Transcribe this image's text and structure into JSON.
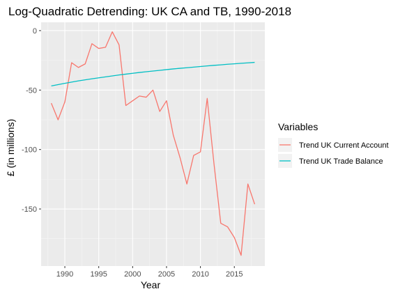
{
  "chart_data": {
    "type": "line",
    "title": "Log-Quadratic Detrending: UK CA and TB, 1990-2018",
    "xlabel": "Year",
    "ylabel": "£ (in millions)",
    "xlim": [
      1986.5,
      2019.5
    ],
    "ylim": [
      -198,
      7
    ],
    "x_ticks": [
      1990,
      1995,
      2000,
      2005,
      2010,
      2015
    ],
    "y_ticks": [
      0,
      -50,
      -100,
      -150
    ],
    "grid": true,
    "legend": {
      "title": "Variables",
      "placement": "right"
    },
    "x": [
      1988,
      1989,
      1990,
      1991,
      1992,
      1993,
      1994,
      1995,
      1996,
      1997,
      1998,
      1999,
      2000,
      2001,
      2002,
      2003,
      2004,
      2005,
      2006,
      2007,
      2008,
      2009,
      2010,
      2011,
      2012,
      2013,
      2014,
      2015,
      2016,
      2017,
      2018
    ],
    "series": [
      {
        "name": "Trend UK Current Account",
        "color": "#F8766D",
        "values": [
          -61,
          -75,
          -60,
          -27,
          -31,
          -28,
          -11,
          -15,
          -14,
          -1,
          -12,
          -63,
          -59,
          -55,
          -56,
          -50,
          -68,
          -59,
          -88,
          -107,
          -129,
          -105,
          -102,
          -57,
          -112,
          -162,
          -165,
          -174,
          -189,
          -129,
          -146
        ]
      },
      {
        "name": "Trend UK Trade Balance",
        "color": "#00BFC4",
        "values": [
          -46.5,
          -45.4,
          -44.3,
          -43.3,
          -42.3,
          -41.4,
          -40.5,
          -39.7,
          -38.9,
          -38.1,
          -37.3,
          -36.6,
          -35.9,
          -35.2,
          -34.6,
          -34.0,
          -33.4,
          -32.8,
          -32.2,
          -31.7,
          -31.2,
          -30.7,
          -30.2,
          -29.7,
          -29.2,
          -28.8,
          -28.3,
          -27.9,
          -27.5,
          -27.1,
          -26.7
        ]
      }
    ]
  }
}
